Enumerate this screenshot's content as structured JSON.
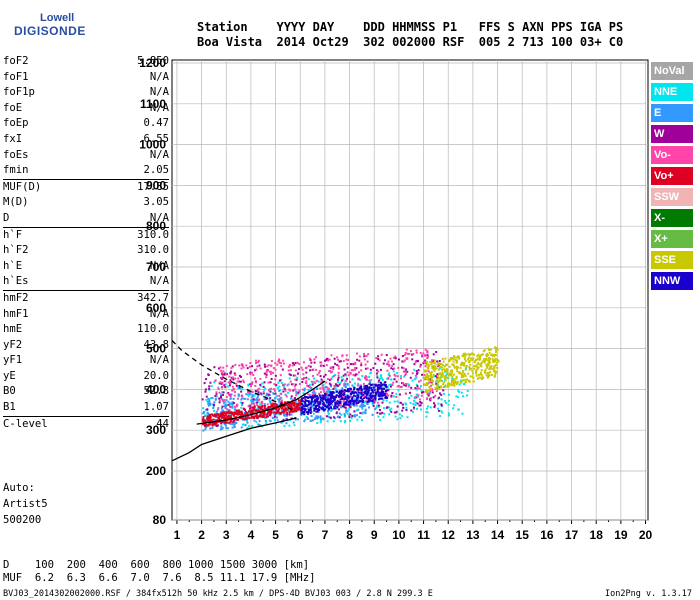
{
  "logo": {
    "line1": "Lowell",
    "line2": "DIGISONDE"
  },
  "header": {
    "row1": "Station    YYYY DAY    DDD HHMMSS P1   FFS S AXN PPS IGA PS",
    "row2": "Boa Vista  2014 Oct29  302 002000 RSF  005 2 713 100 03+ C0"
  },
  "params": [
    {
      "k": "foF2",
      "v": "5.850"
    },
    {
      "k": "foF1",
      "v": "N/A"
    },
    {
      "k": "foF1p",
      "v": "N/A"
    },
    {
      "k": "foE",
      "v": "N/A"
    },
    {
      "k": "foEp",
      "v": "0.47"
    },
    {
      "k": "fxI",
      "v": "6.55"
    },
    {
      "k": "foEs",
      "v": "N/A"
    },
    {
      "k": "fmin",
      "v": "2.05"
    },
    {
      "k": "MUF(D)",
      "v": "17.85",
      "sep": true
    },
    {
      "k": "M(D)",
      "v": "3.05"
    },
    {
      "k": "D",
      "v": "N/A"
    },
    {
      "k": "h`F",
      "v": "310.0",
      "sep": true
    },
    {
      "k": "h`F2",
      "v": "310.0"
    },
    {
      "k": "h`E",
      "v": "N/A"
    },
    {
      "k": "h`Es",
      "v": "N/A"
    },
    {
      "k": "hmF2",
      "v": "342.7",
      "sep": true
    },
    {
      "k": "hmF1",
      "v": "N/A"
    },
    {
      "k": "hmE",
      "v": "110.0"
    },
    {
      "k": "yF2",
      "v": "43.8"
    },
    {
      "k": "yF1",
      "v": "N/A"
    },
    {
      "k": "yE",
      "v": "20.0"
    },
    {
      "k": "B0",
      "v": "52.8"
    },
    {
      "k": "B1",
      "v": "1.07"
    },
    {
      "k": "C-level",
      "v": "44",
      "sep": true
    }
  ],
  "auto": {
    "label": "Auto:",
    "artist": "Artist5",
    "code": "500200"
  },
  "legend": [
    {
      "label": "NoVal",
      "color": "#a6a6a6"
    },
    {
      "label": "NNE",
      "color": "#00e5ee"
    },
    {
      "label": "E",
      "color": "#3399ff"
    },
    {
      "label": "W",
      "color": "#a0009a"
    },
    {
      "label": "Vo-",
      "color": "#ff44aa"
    },
    {
      "label": "Vo+",
      "color": "#dd0022"
    },
    {
      "label": "SSW",
      "color": "#f0b4b4"
    },
    {
      "label": "X-",
      "color": "#007a00"
    },
    {
      "label": "X+",
      "color": "#66bb44"
    },
    {
      "label": "SSE",
      "color": "#c8c800"
    },
    {
      "label": "NNW",
      "color": "#1a00cc"
    }
  ],
  "bottom": {
    "d_row": "D    100  200  400  600  800 1000 1500 3000 [km]",
    "muf_row": "MUF  6.2  6.3  6.6  7.0  7.6  8.5 11.1 17.9 [MHz]",
    "file_row": "BVJ03_2014302002000.RSF / 384fx512h 50 kHz 2.5 km / DPS-4D BVJ03 003 / 2.8 N 299.3 E",
    "version": "Ion2Png v. 1.3.17"
  },
  "chart_data": {
    "type": "scatter",
    "title": "",
    "xlabel": "",
    "ylabel": "",
    "xlim": [
      0.8,
      20.1
    ],
    "ylim": [
      80,
      1210
    ],
    "x_ticks": [
      "1",
      "2",
      "3",
      "4",
      "5",
      "6",
      "7",
      "8",
      "9",
      "10",
      "11",
      "12",
      "13",
      "14",
      "15",
      "16",
      "17",
      "18",
      "19",
      "20"
    ],
    "y_ticks": [
      "80",
      "200",
      "300",
      "400",
      "500",
      "600",
      "700",
      "800",
      "900",
      "1000",
      "1100",
      "1200"
    ],
    "y_tick_values": [
      80,
      200,
      300,
      400,
      500,
      600,
      700,
      800,
      900,
      1000,
      1100,
      1200
    ],
    "grid": true,
    "legend_placement": "right",
    "echo_bands": [
      {
        "series": "NNE",
        "x_range": [
          2.0,
          12.8
        ],
        "h_range": [
          300,
          470
        ]
      },
      {
        "series": "E",
        "x_range": [
          2.0,
          9.0
        ],
        "h_range": [
          300,
          420
        ]
      },
      {
        "series": "W",
        "x_range": [
          2.0,
          11.8
        ],
        "h_range": [
          310,
          520
        ]
      },
      {
        "series": "Vo-",
        "x_range": [
          2.5,
          11.5
        ],
        "h_range": [
          340,
          520
        ]
      },
      {
        "series": "Vo+",
        "x_range": [
          2.0,
          6.0
        ],
        "h_range": [
          310,
          350
        ]
      },
      {
        "series": "SSE",
        "x_range": [
          11.0,
          14.0
        ],
        "h_range": [
          395,
          500
        ]
      },
      {
        "series": "NNW",
        "x_range": [
          6.0,
          9.5
        ],
        "h_range": [
          340,
          400
        ]
      }
    ],
    "model_curves": [
      {
        "style": "solid",
        "points": [
          [
            0.8,
            225
          ],
          [
            1.5,
            245
          ],
          [
            2,
            265
          ],
          [
            3,
            285
          ],
          [
            4,
            305
          ],
          [
            5,
            318
          ],
          [
            5.85,
            330
          ]
        ]
      },
      {
        "style": "dashed",
        "points": [
          [
            0.8,
            520
          ],
          [
            1.2,
            495
          ],
          [
            2,
            460
          ],
          [
            3,
            425
          ],
          [
            4,
            395
          ],
          [
            5,
            370
          ],
          [
            5.85,
            345
          ]
        ]
      },
      {
        "style": "solid",
        "points": [
          [
            1.8,
            315
          ],
          [
            3,
            325
          ],
          [
            4,
            338
          ],
          [
            5,
            355
          ],
          [
            5.85,
            375
          ],
          [
            6.5,
            400
          ],
          [
            7,
            420
          ]
        ]
      }
    ]
  }
}
